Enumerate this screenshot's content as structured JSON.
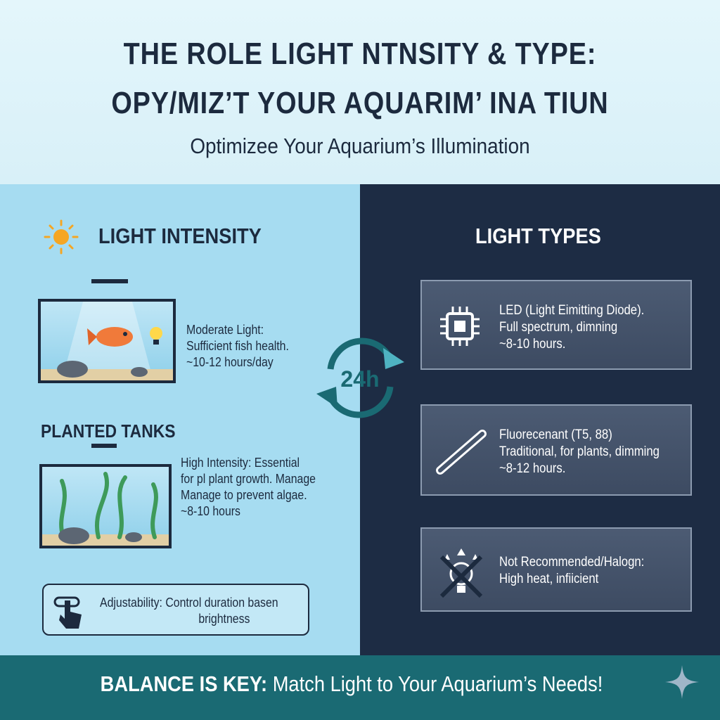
{
  "header": {
    "title_lines": [
      "THE ROLE  LIGHT NTNSITY & TYPE:",
      "OPY/MIZ’T YOUR AQUARIM’ INA TIUN"
    ],
    "subtitle": "Optimizee Your Aquarium’s Illumination"
  },
  "left": {
    "heading": "LIGHT INTENSITY",
    "moderate": {
      "lines": [
        "Moderate Light:",
        "Sufficient fish health.",
        "~10-12 hours/day"
      ]
    },
    "planted_heading": "PLANTED TANKS",
    "planted": {
      "lines": [
        "High Intensity: Essential",
        "for pl plant growth. Manage",
        "Manage to prevent algae.",
        "~8-10 hours"
      ]
    },
    "adjustability": {
      "lines": [
        "Adjustability: Control duration basen",
        "brightness"
      ]
    }
  },
  "cycle_label": "24h",
  "right": {
    "heading": "LIGHT TYPES",
    "cards": [
      {
        "icon": "chip-icon",
        "lines": [
          "LED (Light Eimitting Diode).",
          "Full spectrum, dimning",
          "~8-10 hours."
        ]
      },
      {
        "icon": "fluorescent-tube-icon",
        "lines": [
          "Fluorecenant (T5, 88)",
          "Traditional, for plants, dimming",
          "~8-12 hours."
        ]
      },
      {
        "icon": "crossed-bulb-icon",
        "lines": [
          "Not Recommended/Halogn:",
          "High heat, infiicient"
        ]
      }
    ]
  },
  "footer": {
    "bold": "BALANCE IS KEY:",
    "rest": " Match Light to Your Aquarium’s Needs!"
  },
  "colors": {
    "dark": "#1c2a3e",
    "left_bg": "#a6dcf1",
    "right_bg": "#1d2c44",
    "footer": "#1a6a73",
    "sun": "#f5a623"
  }
}
